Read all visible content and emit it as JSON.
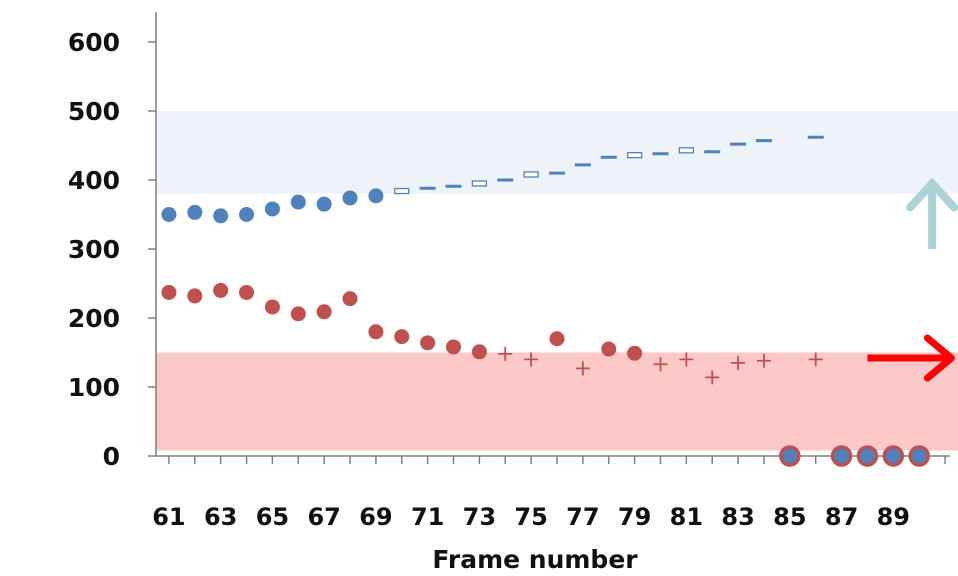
{
  "chart_data": {
    "type": "scatter",
    "xlabel": "Frame number",
    "ylabel": "",
    "xlim": [
      60.5,
      91.5
    ],
    "ylim": [
      0,
      600
    ],
    "y_ticks": [
      0,
      100,
      200,
      300,
      400,
      500,
      600
    ],
    "x_tick_labels": [
      61,
      63,
      65,
      67,
      69,
      71,
      73,
      75,
      77,
      79,
      81,
      83,
      85,
      87,
      89
    ],
    "grid": false,
    "legend": "none",
    "bands": [
      {
        "name": "",
        "y_range": [
          380,
          500
        ],
        "color": "#eef3fa"
      },
      {
        "name": "",
        "y_range": [
          8,
          150
        ],
        "color": "#fcc8c8"
      }
    ],
    "series": [
      {
        "marker": "circle",
        "color": "#4f81bd",
        "points": [
          [
            61,
            350
          ],
          [
            62,
            353
          ],
          [
            63,
            348
          ],
          [
            64,
            350
          ],
          [
            65,
            358
          ],
          [
            66,
            368
          ],
          [
            67,
            365
          ],
          [
            68,
            374
          ],
          [
            69,
            377
          ]
        ]
      },
      {
        "marker": "hollow-dash",
        "color": "#4f81bd",
        "points": [
          [
            70,
            384
          ],
          [
            73,
            395
          ],
          [
            75,
            408
          ],
          [
            79,
            436
          ],
          [
            81,
            443
          ]
        ]
      },
      {
        "marker": "dash",
        "color": "#4f81bd",
        "points": [
          [
            71,
            388
          ],
          [
            72,
            391
          ],
          [
            74,
            400
          ],
          [
            76,
            410
          ],
          [
            77,
            422
          ],
          [
            78,
            433
          ],
          [
            80,
            438
          ],
          [
            82,
            441
          ],
          [
            83,
            452
          ],
          [
            84,
            457
          ],
          [
            86,
            462
          ]
        ]
      },
      {
        "marker": "circle",
        "color": "#c0504d",
        "points": [
          [
            61,
            237
          ],
          [
            62,
            232
          ],
          [
            63,
            240
          ],
          [
            64,
            237
          ],
          [
            65,
            216
          ],
          [
            66,
            206
          ],
          [
            67,
            209
          ],
          [
            68,
            228
          ],
          [
            69,
            180
          ],
          [
            70,
            173
          ],
          [
            71,
            164
          ],
          [
            72,
            158
          ],
          [
            73,
            151
          ],
          [
            76,
            170
          ],
          [
            78,
            155
          ],
          [
            79,
            149
          ]
        ]
      },
      {
        "marker": "plus",
        "color": "#c0504d",
        "points": [
          [
            74,
            148
          ],
          [
            75,
            140
          ],
          [
            77,
            127
          ],
          [
            80,
            133
          ],
          [
            81,
            140
          ],
          [
            82,
            114
          ],
          [
            83,
            135
          ],
          [
            84,
            138
          ],
          [
            86,
            140
          ]
        ]
      },
      {
        "marker": "circle-outlined",
        "color": "#4f81bd",
        "edge_color": "#c0504d",
        "points": [
          [
            85,
            0
          ],
          [
            87,
            0
          ],
          [
            88,
            0
          ],
          [
            89,
            0
          ],
          [
            90,
            0
          ]
        ]
      }
    ],
    "annotations": [
      {
        "type": "arrow-up",
        "color": "#a9d3d5",
        "x": 90.5,
        "y_from": 300,
        "y_to": 398
      },
      {
        "type": "arrow-right",
        "color": "#ff0000",
        "y": 142,
        "x_from": 88.0,
        "x_to": 91.4
      }
    ]
  }
}
